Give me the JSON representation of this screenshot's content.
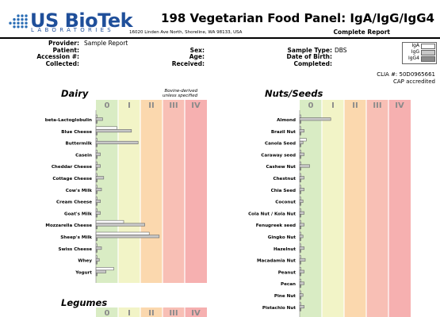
{
  "brand": {
    "name": "US BioTek",
    "tagline": "LABORATORIES",
    "address": "16020 Linden Ave North, Shoreline, WA 98133, USA"
  },
  "report": {
    "title": "198 Vegetarian Food Panel: IgA/IgG/IgG4",
    "status": "Complete Report"
  },
  "patient_info": {
    "provider_label": "Provider:",
    "provider": "Sample Report",
    "patient_label": "Patient:",
    "accession_label": "Accession #:",
    "collected_label": "Collected:",
    "sex_label": "Sex:",
    "age_label": "Age:",
    "received_label": "Received:",
    "sample_type_label": "Sample Type:",
    "sample_type": "DBS",
    "dob_label": "Date of Birth:",
    "completed_label": "Completed:"
  },
  "legend": {
    "items": [
      {
        "label": "IgA",
        "color": "#ffffff"
      },
      {
        "label": "IgG",
        "color": "#c8c8c8"
      },
      {
        "label": "IgG4",
        "color": "#8c8c8c"
      }
    ]
  },
  "lab": {
    "clia": "CLIA #: 50D0965661",
    "cap": "CAP accredited"
  },
  "class_labels": [
    "0",
    "I",
    "II",
    "III",
    "IV"
  ],
  "colors": {
    "zone0": "#d9ecc4",
    "zone1": "#f2f4c7",
    "zone2": "#fbd8ae",
    "zone3": "#f8bfb5",
    "zone4": "#f6b0b0",
    "zone_label": "#8a8a8a",
    "iga": "#ffffff",
    "igg": "#c8c8c8",
    "igg4": "#8c8c8c",
    "bar_stroke": "#666666"
  },
  "sections": {
    "dairy": {
      "title": "Dairy",
      "note_line1": "Bovine-derived",
      "note_line2": "unless specified"
    },
    "nuts": {
      "title": "Nuts/Seeds"
    },
    "legumes": {
      "title": "Legumes"
    }
  },
  "chart_data": [
    {
      "type": "bar",
      "title": "Dairy",
      "orientation": "horizontal",
      "x_classes": [
        "0",
        "I",
        "II",
        "III",
        "IV"
      ],
      "xlim": [
        0,
        5
      ],
      "categories": [
        "beta-Lactoglobulin",
        "Blue Cheese",
        "Buttermilk",
        "Casein",
        "Cheddar Cheese",
        "Cottage Cheese",
        "Cow's Milk",
        "Cream Cheese",
        "Goat's Milk",
        "Mozzarella Cheese",
        "Sheep's Milk",
        "Swiss Cheese",
        "Whey",
        "Yogurt"
      ],
      "series": [
        {
          "name": "IgA",
          "values": [
            0.05,
            0.95,
            0.05,
            0.05,
            0.05,
            0.05,
            0.05,
            0.05,
            0.05,
            1.25,
            2.4,
            0.05,
            0.05,
            0.8
          ]
        },
        {
          "name": "IgG",
          "values": [
            0.3,
            1.6,
            1.9,
            0.2,
            0.2,
            0.35,
            0.25,
            0.2,
            0.2,
            2.2,
            2.85,
            0.25,
            0.15,
            0.45
          ]
        },
        {
          "name": "IgG4",
          "values": [
            0.05,
            0.05,
            0.05,
            0.05,
            0.05,
            0.05,
            0.05,
            0.05,
            0.05,
            0.05,
            0.05,
            0.05,
            0.05,
            0.05
          ]
        }
      ]
    },
    {
      "type": "bar",
      "title": "Nuts/Seeds",
      "orientation": "horizontal",
      "x_classes": [
        "0",
        "I",
        "II",
        "III",
        "IV"
      ],
      "xlim": [
        0,
        5
      ],
      "categories": [
        "Almond",
        "Brazil Nut",
        "Canola Seed",
        "Caraway seed",
        "Cashew Nut",
        "Chestnut",
        "Chia Seed",
        "Coconut",
        "Cola Nut / Kola Nut",
        "Fenugreek seed",
        "Gingko Nut",
        "Hazelnut",
        "Macadamia Nut",
        "Peanut",
        "Pecan",
        "Pine Nut",
        "Pistachio Nut"
      ],
      "series": [
        {
          "name": "IgA",
          "values": [
            0.05,
            0.05,
            0.3,
            0.05,
            0.05,
            0.05,
            0.05,
            0.05,
            0.05,
            0.05,
            0.05,
            0.05,
            0.05,
            0.05,
            0.05,
            0.05,
            0.05
          ]
        },
        {
          "name": "IgG",
          "values": [
            1.4,
            0.2,
            0.15,
            0.2,
            0.45,
            0.2,
            0.2,
            0.15,
            0.2,
            0.2,
            0.15,
            0.2,
            0.25,
            0.2,
            0.2,
            0.15,
            0.2
          ]
        },
        {
          "name": "IgG4",
          "values": [
            0.05,
            0.05,
            0.05,
            0.05,
            0.05,
            0.05,
            0.05,
            0.05,
            0.05,
            0.05,
            0.05,
            0.05,
            0.05,
            0.05,
            0.05,
            0.05,
            0.05
          ]
        }
      ]
    },
    {
      "type": "bar",
      "title": "Legumes",
      "orientation": "horizontal",
      "x_classes": [
        "0",
        "I",
        "II",
        "III",
        "IV"
      ],
      "xlim": [
        0,
        5
      ],
      "categories": [],
      "series": []
    }
  ]
}
